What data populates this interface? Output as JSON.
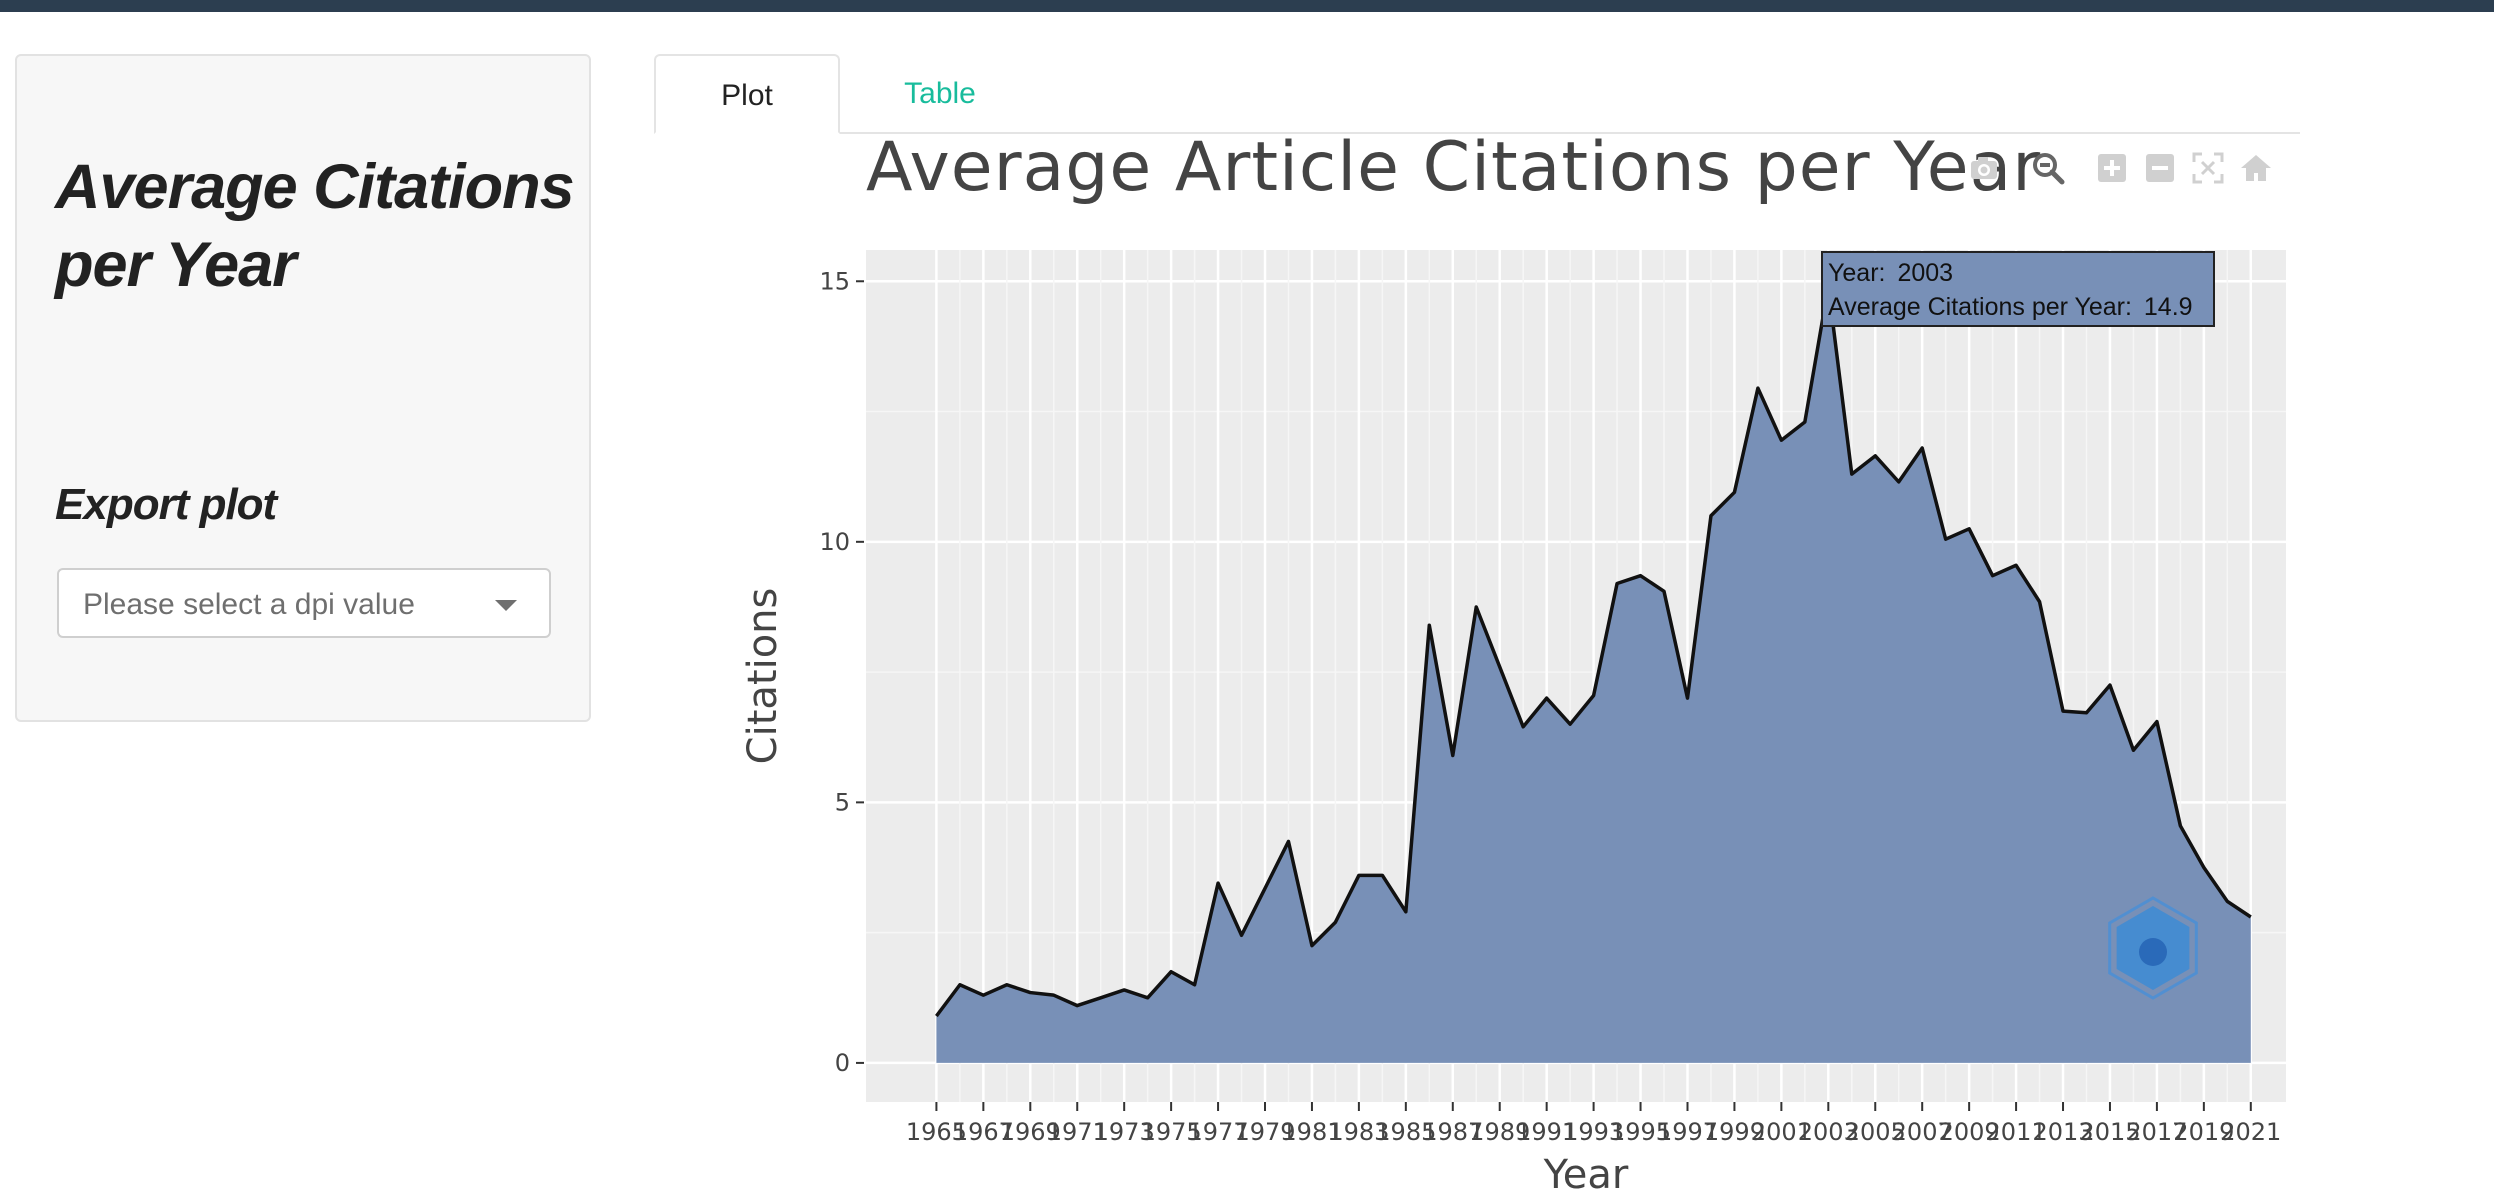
{
  "sidebar": {
    "title": "Average Citations per Year",
    "export_heading": "Export plot",
    "dpi_select": {
      "placeholder": "Please select a dpi value"
    }
  },
  "tabs": [
    {
      "label": "Plot",
      "active": true
    },
    {
      "label": "Table",
      "active": false
    }
  ],
  "modebar": {
    "icons": [
      "camera-icon",
      "zoom-icon",
      "zoom-in-icon",
      "zoom-out-icon",
      "autoscale-icon",
      "home-icon"
    ]
  },
  "colors": {
    "fill": "#7890b7",
    "line": "#111111",
    "panel_bg": "#ececec",
    "tab_link": "#18bc9c",
    "top_bar": "#2c3e50"
  },
  "chart_data": {
    "type": "area",
    "title": "Average Article Citations per Year",
    "xlabel": "Year",
    "ylabel": "Citations",
    "x": [
      1965,
      1966,
      1967,
      1968,
      1969,
      1970,
      1971,
      1972,
      1973,
      1974,
      1975,
      1976,
      1977,
      1978,
      1979,
      1980,
      1981,
      1982,
      1983,
      1984,
      1985,
      1986,
      1987,
      1988,
      1989,
      1990,
      1991,
      1992,
      1993,
      1994,
      1995,
      1996,
      1997,
      1998,
      1999,
      2000,
      2001,
      2002,
      2003,
      2004,
      2005,
      2006,
      2007,
      2008,
      2009,
      2010,
      2011,
      2012,
      2013,
      2014,
      2015,
      2016,
      2017,
      2018,
      2019,
      2020,
      2021
    ],
    "y": [
      0.9,
      1.5,
      1.3,
      1.5,
      1.35,
      1.3,
      1.1,
      1.25,
      1.4,
      1.25,
      1.75,
      1.5,
      3.45,
      2.45,
      3.35,
      4.25,
      2.25,
      2.7,
      3.6,
      3.6,
      2.9,
      8.4,
      5.9,
      8.75,
      7.6,
      6.45,
      7.0,
      6.5,
      7.05,
      9.2,
      9.35,
      9.05,
      7.0,
      10.5,
      10.95,
      12.95,
      11.95,
      12.3,
      14.9,
      11.3,
      11.65,
      11.15,
      11.8,
      10.05,
      10.25,
      9.35,
      9.55,
      8.85,
      6.75,
      6.72,
      7.25,
      6.0,
      6.55,
      4.55,
      3.75,
      3.1,
      2.8
    ],
    "xticks": [
      "1965",
      "1967",
      "1969",
      "1971",
      "1973",
      "1975",
      "1977",
      "1979",
      "1981",
      "1983",
      "1985",
      "1987",
      "1989",
      "1991",
      "1993",
      "1995",
      "1997",
      "1999",
      "2001",
      "2003",
      "2005",
      "2007",
      "2009",
      "2011",
      "2013",
      "2015",
      "2017",
      "2019",
      "2021"
    ],
    "yticks": [
      0,
      5,
      10,
      15
    ],
    "xlim": [
      1962,
      2022.5
    ],
    "ylim": [
      -0.75,
      15.6
    ],
    "grid": true,
    "tooltip": {
      "year_label": "Year:",
      "year_value": "2003",
      "value_label": "Average Citations per Year:",
      "value": "14.9"
    }
  }
}
